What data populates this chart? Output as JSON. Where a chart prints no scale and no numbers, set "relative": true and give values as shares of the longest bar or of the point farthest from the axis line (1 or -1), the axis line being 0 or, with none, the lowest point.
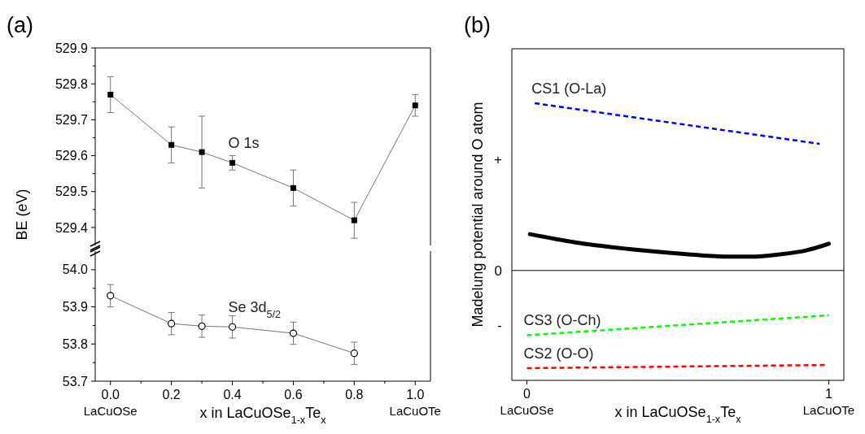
{
  "chart_data": [
    {
      "type": "line",
      "title": "(a)",
      "ylabel": "BE (eV)",
      "tick_labels": "y",
      "marker": "square",
      "line_style": "solid",
      "xlim": [
        -0.05,
        1.05
      ],
      "ylim": [
        529.35,
        529.9
      ],
      "yticks": [
        529.4,
        {
          "value": 529.45,
          "label": null
        },
        529.5,
        {
          "value": 529.55,
          "label": null
        },
        529.6,
        {
          "value": 529.65,
          "label": null
        },
        529.7,
        {
          "value": 529.75,
          "label": null
        },
        529.8,
        {
          "value": 529.85,
          "label": null
        },
        529.9
      ],
      "series": [
        {
          "name": "O 1s",
          "color": "#000000",
          "x": [
            0,
            0.2,
            0.3,
            0.4,
            0.6,
            0.8,
            1.0
          ],
          "values": [
            529.77,
            529.63,
            529.61,
            529.58,
            529.51,
            529.42,
            529.74
          ],
          "errors": [
            0.05,
            0.05,
            0.1,
            0.02,
            0.05,
            0.05,
            0.03
          ]
        }
      ]
    },
    {
      "type": "line",
      "xlabel": "x in LaCuOSe$_{1-x}$Te$_{x}$",
      "marker": "circle",
      "line_style": "solid",
      "annotations": [
        "LaCuOSe",
        "LaCuOTe"
      ],
      "xlim": [
        -0.05,
        1.05
      ],
      "ylim": [
        53.7,
        54.05
      ],
      "xticks": [
        {
          "value": 0,
          "label": "0.0"
        },
        {
          "value": 0.1,
          "label": null
        },
        0.2,
        {
          "value": 0.3,
          "label": null
        },
        0.4,
        {
          "value": 0.5,
          "label": null
        },
        0.6,
        {
          "value": 0.7,
          "label": null
        },
        0.8,
        {
          "value": 0.9,
          "label": null
        },
        {
          "value": 1,
          "label": "1.0"
        }
      ],
      "yticks": [
        53.7,
        {
          "value": 53.75,
          "label": null
        },
        53.8,
        {
          "value": 53.85,
          "label": null
        },
        53.9,
        {
          "value": 53.95,
          "label": null
        },
        {
          "value": 54,
          "label": "54.0"
        }
      ],
      "series": [
        {
          "name": "Se 3d$_{5/2}$",
          "color": "#000000",
          "x": [
            0,
            0.2,
            0.3,
            0.4,
            0.6,
            0.8
          ],
          "values": [
            53.93,
            53.855,
            53.848,
            53.846,
            53.829,
            53.775
          ],
          "errors": [
            0.03,
            0.03,
            0.03,
            0.03,
            0.03,
            0.03
          ]
        }
      ]
    },
    {
      "type": "line",
      "title": "(b)",
      "xlabel": "x in LaCuOSe$_{1-x}$Te$_{x}$",
      "ylabel": "Madelung potential around O atom",
      "relative": true,
      "marker": "none",
      "annotations": [
        "LaCuOSe",
        "LaCuOTe",
        "+",
        "0",
        "-"
      ],
      "xlim": [
        -0.05,
        1.05
      ],
      "xticks": [
        0,
        1
      ],
      "ref_lines": [
        {
          "axis": "y",
          "value": 0,
          "color": "#000000",
          "line_style": "solid"
        }
      ],
      "series": [
        {
          "name": "CS1 (O-La)",
          "color": "#0000ff",
          "line_style": "dashed",
          "x": [
            0.026,
            0.97
          ],
          "values": [
            1,
            0.757
          ]
        },
        {
          "color": "#000000",
          "line_style": "solid",
          "x": [
            0.01,
            0.16,
            0.34,
            0.52,
            0.655,
            0.745,
            0.835,
            0.925,
            1.0
          ],
          "values": [
            0.217,
            0.168,
            0.128,
            0.099,
            0.083,
            0.083,
            0.096,
            0.12,
            0.16
          ]
        },
        {
          "name": "CS3 (O-Ch)",
          "color": "#00ff00",
          "line_style": "dashed",
          "x": [
            0,
            1
          ],
          "values": [
            -0.387,
            -0.268
          ]
        },
        {
          "name": "CS2 (O-O)",
          "color": "#ff0000",
          "line_style": "dashed",
          "x": [
            0,
            0.99
          ],
          "values": [
            -0.584,
            -0.565
          ]
        }
      ]
    }
  ]
}
